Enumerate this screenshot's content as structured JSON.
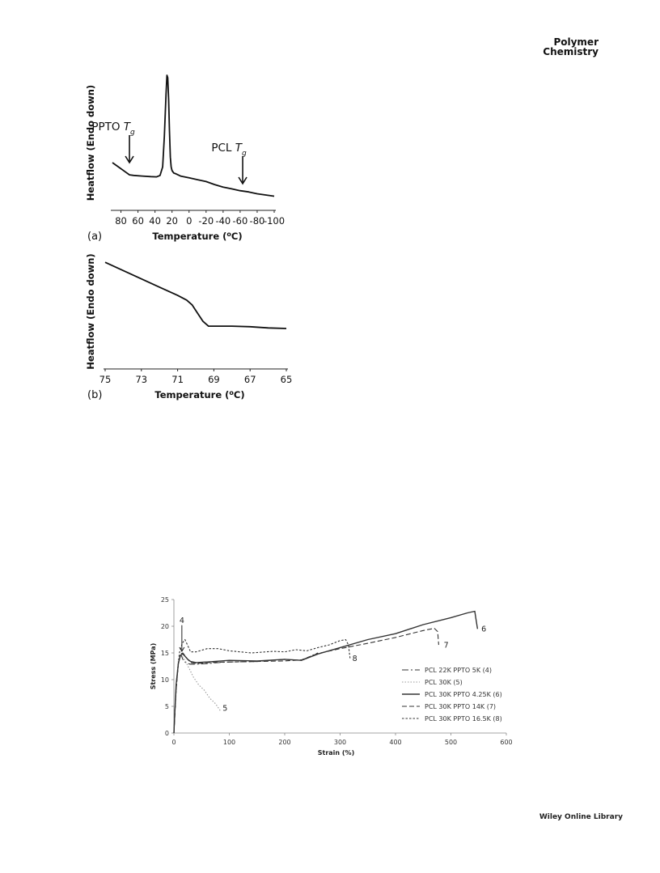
{
  "header": {
    "journal_line1": "Polymer",
    "journal_line2": "Chemistry"
  },
  "footer": {
    "brand": "Wiley Online Library"
  },
  "chart_data": [
    {
      "type": "line",
      "panel_label": "(a)",
      "xlabel": "Temperature (",
      "xlabel_sup": "o",
      "xlabel_end": "C)",
      "ylabel": "Heatflow (Endo down)",
      "xlim": [
        90,
        -100
      ],
      "xticks": [
        "80",
        "60",
        "40",
        "20",
        "0",
        "-20",
        "-40",
        "-60",
        "-80",
        "-100"
      ],
      "xtick_values": [
        80,
        60,
        40,
        20,
        0,
        -20,
        -40,
        -60,
        -80,
        -100
      ],
      "ylim": [
        0,
        1
      ],
      "annotations": [
        {
          "text": "PPTO ",
          "italic": "T",
          "sub": "g",
          "x": 70
        },
        {
          "text": "PCL ",
          "italic": "T",
          "sub": "g",
          "x": -63
        }
      ],
      "series": [
        {
          "x": [
            90,
            82,
            75,
            70,
            65,
            55,
            45,
            38,
            34,
            31,
            29,
            27,
            26,
            25,
            24,
            23,
            22,
            21,
            20,
            18,
            16,
            10,
            0,
            -10,
            -20,
            -30,
            -40,
            -50,
            -60,
            -70,
            -80,
            -90,
            -100
          ],
          "y": [
            0.285,
            0.245,
            0.21,
            0.185,
            0.18,
            0.175,
            0.17,
            0.168,
            0.18,
            0.25,
            0.5,
            0.85,
            1.0,
            0.98,
            0.8,
            0.55,
            0.33,
            0.25,
            0.22,
            0.2,
            0.195,
            0.175,
            0.16,
            0.145,
            0.13,
            0.105,
            0.085,
            0.07,
            0.055,
            0.045,
            0.03,
            0.02,
            0.01
          ]
        }
      ]
    },
    {
      "type": "line",
      "panel_label": "(b)",
      "xlabel": "Temperature (",
      "xlabel_sup": "o",
      "xlabel_end": "C)",
      "ylabel": "Heatflow (Endo down)",
      "xlim": [
        75,
        65
      ],
      "xticks": [
        "75",
        "73",
        "71",
        "69",
        "67",
        "65"
      ],
      "xtick_values": [
        75,
        73,
        71,
        69,
        67,
        65
      ],
      "ylim": [
        0,
        1
      ],
      "series": [
        {
          "x": [
            75,
            74,
            73,
            72,
            71,
            70.5,
            70.2,
            69.9,
            69.6,
            69.3,
            69,
            68,
            67,
            66,
            65
          ],
          "y": [
            0.93,
            0.86,
            0.79,
            0.72,
            0.65,
            0.61,
            0.57,
            0.5,
            0.43,
            0.39,
            0.39,
            0.39,
            0.385,
            0.375,
            0.37
          ]
        }
      ]
    },
    {
      "type": "line",
      "xlabel": "Strain (%)",
      "ylabel": "Stress (MPa)",
      "xlim": [
        0,
        600
      ],
      "ylim": [
        0,
        25
      ],
      "xticks": [
        "0",
        "100",
        "200",
        "300",
        "400",
        "500",
        "600"
      ],
      "xtick_values": [
        0,
        100,
        200,
        300,
        400,
        500,
        600
      ],
      "yticks": [
        "0",
        "5",
        "10",
        "15",
        "20",
        "25"
      ],
      "ytick_values": [
        0,
        5,
        10,
        15,
        20,
        25
      ],
      "legend_position": "right",
      "end_labels": [
        {
          "text": "4",
          "x": 10,
          "y": 20.6
        },
        {
          "text": "5",
          "x": 88,
          "y": 4.2
        },
        {
          "text": "6",
          "x": 555,
          "y": 19.0
        },
        {
          "text": "7",
          "x": 487,
          "y": 16.0
        },
        {
          "text": "8",
          "x": 322,
          "y": 13.5
        }
      ],
      "series": [
        {
          "name": "PCL 22K PPTO 5K (4)",
          "dash": "8,3,2,3",
          "x": [
            0,
            4,
            8,
            12,
            14,
            16,
            20,
            25,
            30,
            40,
            60,
            80,
            100,
            150,
            200,
            230,
            260
          ],
          "y": [
            0,
            8,
            13,
            14.6,
            14.4,
            13.8,
            13.3,
            13.0,
            12.9,
            12.9,
            13.0,
            13.2,
            13.3,
            13.4,
            13.8,
            13.6,
            15.0
          ]
        },
        {
          "name": "PCL 30K (5)",
          "dash": "1.5,2",
          "x": [
            0,
            4,
            8,
            12,
            16,
            20,
            28,
            35,
            45,
            55,
            65,
            75,
            85
          ],
          "y": [
            0,
            9,
            13.5,
            14.4,
            14.2,
            13.6,
            12.0,
            10.5,
            9.0,
            8.0,
            6.5,
            5.5,
            4.0
          ]
        },
        {
          "name": "PCL 30K PPTO 4.25K (6)",
          "dash": "",
          "x": [
            0,
            4,
            8,
            12,
            16,
            20,
            25,
            30,
            40,
            60,
            100,
            150,
            200,
            230,
            260,
            300,
            350,
            400,
            450,
            500,
            530,
            543,
            545,
            548
          ],
          "y": [
            0,
            9,
            13,
            14.6,
            14.8,
            14.4,
            13.8,
            13.4,
            13.2,
            13.3,
            13.6,
            13.5,
            13.8,
            13.6,
            14.8,
            16.0,
            17.5,
            18.6,
            20.3,
            21.6,
            22.5,
            22.8,
            21.5,
            19.5
          ]
        },
        {
          "name": "PCL 30K PPTO 14K (7)",
          "dash": "6,3",
          "x": [
            0,
            4,
            8,
            12,
            16,
            20,
            25,
            30,
            40,
            60,
            100,
            150,
            200,
            230,
            260,
            300,
            350,
            400,
            450,
            470,
            476,
            478
          ],
          "y": [
            0,
            8,
            13,
            14.8,
            15.0,
            14.5,
            13.8,
            13.2,
            13.0,
            13.2,
            13.3,
            13.4,
            13.5,
            13.7,
            14.9,
            15.8,
            16.8,
            17.9,
            19.2,
            19.6,
            19.0,
            16.5
          ]
        },
        {
          "name": "PCL 30K PPTO 16.5K (8)",
          "dash": "2.5,2",
          "x": [
            0,
            5,
            10,
            15,
            20,
            25,
            30,
            40,
            60,
            80,
            100,
            140,
            180,
            200,
            220,
            240,
            260,
            280,
            300,
            310,
            315,
            318
          ],
          "y": [
            0,
            10,
            15,
            16.8,
            17.5,
            16.4,
            15.2,
            15.2,
            15.8,
            15.8,
            15.4,
            15.0,
            15.3,
            15.2,
            15.6,
            15.4,
            16.0,
            16.5,
            17.3,
            17.5,
            16.5,
            14.0
          ]
        }
      ]
    }
  ]
}
